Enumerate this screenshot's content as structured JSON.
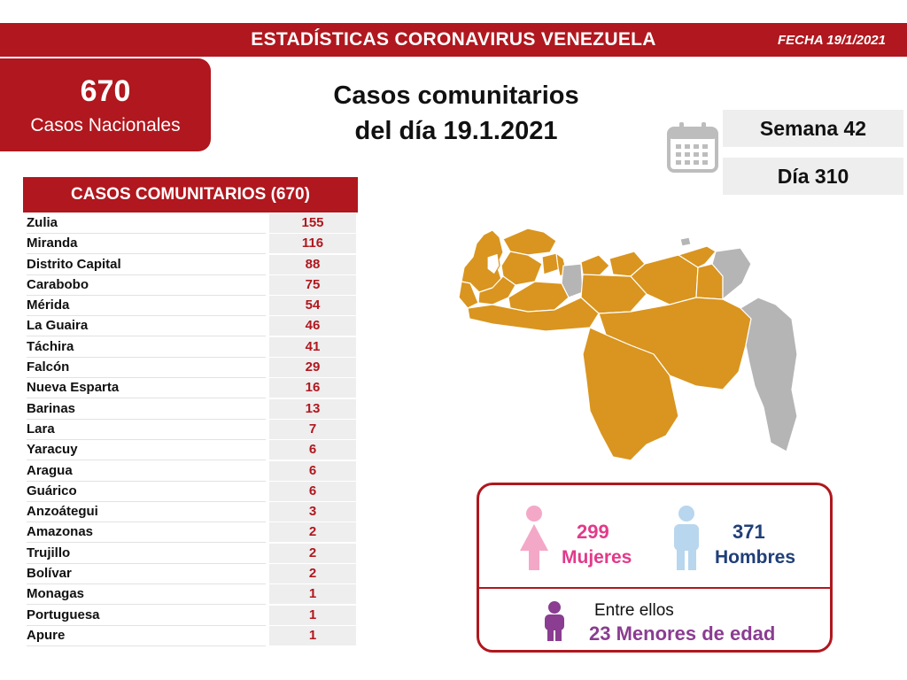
{
  "header": {
    "title": "ESTADÍSTICAS CORONAVIRUS VENEZUELA",
    "date": "FECHA 19/1/2021"
  },
  "national": {
    "count": "670",
    "label": "Casos Nacionales"
  },
  "main_title": {
    "line1": "Casos comunitarios",
    "line2": "del día 19.1.2021"
  },
  "period": {
    "week": "Semana 42",
    "day": "Día 310"
  },
  "table": {
    "heading": "CASOS COMUNITARIOS (670)",
    "rows": [
      {
        "state": "Zulia",
        "cases": "155"
      },
      {
        "state": "Miranda",
        "cases": "116"
      },
      {
        "state": "Distrito Capital",
        "cases": "88"
      },
      {
        "state": "Carabobo",
        "cases": "75"
      },
      {
        "state": "Mérida",
        "cases": "54"
      },
      {
        "state": "La Guaira",
        "cases": "46"
      },
      {
        "state": "Táchira",
        "cases": "41"
      },
      {
        "state": "Falcón",
        "cases": "29"
      },
      {
        "state": "Nueva Esparta",
        "cases": "16"
      },
      {
        "state": "Barinas",
        "cases": "13"
      },
      {
        "state": "Lara",
        "cases": "7"
      },
      {
        "state": "Yaracuy",
        "cases": "6"
      },
      {
        "state": "Aragua",
        "cases": "6"
      },
      {
        "state": "Guárico",
        "cases": "6"
      },
      {
        "state": "Anzoátegui",
        "cases": "3"
      },
      {
        "state": "Amazonas",
        "cases": "2"
      },
      {
        "state": "Trujillo",
        "cases": "2"
      },
      {
        "state": "Bolívar",
        "cases": "2"
      },
      {
        "state": "Monagas",
        "cases": "1"
      },
      {
        "state": "Portuguesa",
        "cases": "1"
      },
      {
        "state": "Apure",
        "cases": "1"
      }
    ]
  },
  "gender": {
    "female_count": "299",
    "female_label": "Mujeres",
    "male_count": "371",
    "male_label": "Hombres",
    "minors_intro": "Entre ellos",
    "minors_count": "23",
    "minors_label": "Menores de edad"
  },
  "icons": {
    "calendar": "calendar-icon",
    "female": "female-figure-icon",
    "male": "male-figure-icon",
    "child": "child-figure-icon"
  },
  "colors": {
    "brand_red": "#b0171e",
    "map_affected": "#d9951f",
    "map_unaffected": "#b5b5b5",
    "female": "#e23a8a",
    "male": "#1f3f77",
    "minors": "#8a3d91"
  }
}
